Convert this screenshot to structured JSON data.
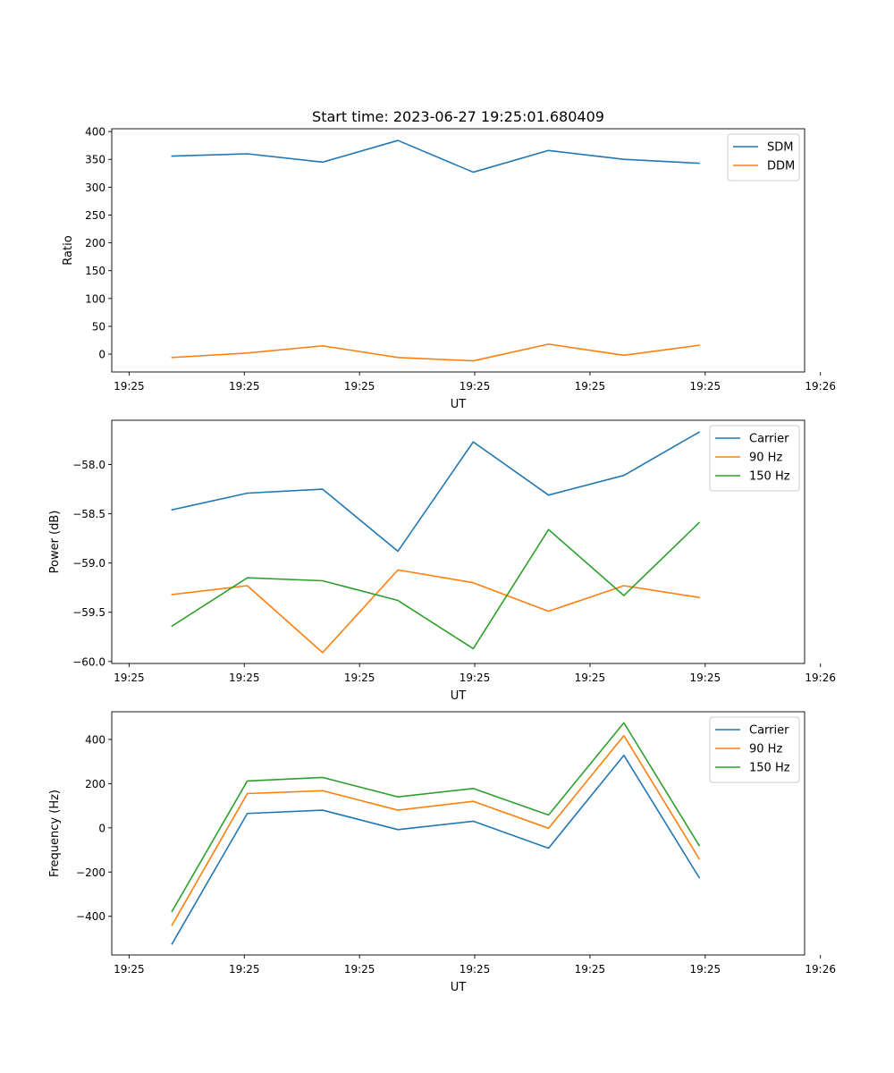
{
  "figure": {
    "title": "Start time: 2023-06-27 19:25:01.680409"
  },
  "colors": {
    "blue": "#1f77b4",
    "orange": "#ff7f0e",
    "green": "#2ca02c",
    "axis": "#000000",
    "legend_border": "#cccccc"
  },
  "chart_data": [
    {
      "type": "line",
      "title": "Start time: 2023-06-27 19:25:01.680409",
      "xlabel": "UT",
      "ylabel": "Ratio",
      "x": [
        1,
        2,
        3,
        4,
        5,
        6,
        7,
        8
      ],
      "xlim": [
        0.2,
        9.4
      ],
      "x_ticks": [
        0.43,
        1.96,
        3.49,
        5.02,
        6.55,
        8.08,
        9.61
      ],
      "x_tick_labels": [
        "19:25",
        "19:25",
        "19:25",
        "19:25",
        "19:25",
        "19:25",
        "19:26"
      ],
      "ylim": [
        -32,
        405
      ],
      "y_ticks": [
        0,
        50,
        100,
        150,
        200,
        250,
        300,
        350,
        400
      ],
      "y_tick_labels": [
        "0",
        "50",
        "100",
        "150",
        "200",
        "250",
        "300",
        "350",
        "400"
      ],
      "legend_position": "top-right",
      "grid": false,
      "series": [
        {
          "name": "SDM",
          "color": "#1f77b4",
          "values": [
            356,
            360,
            345,
            384,
            327,
            366,
            350,
            343
          ]
        },
        {
          "name": "DDM",
          "color": "#ff7f0e",
          "values": [
            -6,
            2,
            15,
            -6,
            -12,
            18,
            -2,
            16
          ]
        }
      ]
    },
    {
      "type": "line",
      "title": "",
      "xlabel": "UT",
      "ylabel": "Power (dB)",
      "x": [
        1,
        2,
        3,
        4,
        5,
        6,
        7,
        8
      ],
      "xlim": [
        0.2,
        9.4
      ],
      "x_ticks": [
        0.43,
        1.96,
        3.49,
        5.02,
        6.55,
        8.08,
        9.61
      ],
      "x_tick_labels": [
        "19:25",
        "19:25",
        "19:25",
        "19:25",
        "19:25",
        "19:25",
        "19:26"
      ],
      "ylim": [
        -60.02,
        -57.55
      ],
      "y_ticks": [
        -60.0,
        -59.5,
        -59.0,
        -58.5,
        -58.0
      ],
      "y_tick_labels": [
        "−60.0",
        "−59.5",
        "−59.0",
        "−58.5",
        "−58.0"
      ],
      "legend_position": "top-right",
      "grid": false,
      "series": [
        {
          "name": "Carrier",
          "color": "#1f77b4",
          "values": [
            -58.46,
            -58.29,
            -58.25,
            -58.88,
            -57.77,
            -58.31,
            -58.11,
            -57.67
          ]
        },
        {
          "name": "90 Hz",
          "color": "#ff7f0e",
          "values": [
            -59.32,
            -59.23,
            -59.91,
            -59.07,
            -59.2,
            -59.49,
            -59.23,
            -59.35
          ]
        },
        {
          "name": "150 Hz",
          "color": "#2ca02c",
          "values": [
            -59.64,
            -59.15,
            -59.18,
            -59.38,
            -59.87,
            -58.66,
            -59.33,
            -58.59
          ]
        }
      ]
    },
    {
      "type": "line",
      "title": "",
      "xlabel": "UT",
      "ylabel": "Frequency (Hz)",
      "x": [
        1,
        2,
        3,
        4,
        5,
        6,
        7,
        8
      ],
      "xlim": [
        0.2,
        9.4
      ],
      "x_ticks": [
        0.43,
        1.96,
        3.49,
        5.02,
        6.55,
        8.08,
        9.61
      ],
      "x_tick_labels": [
        "19:25",
        "19:25",
        "19:25",
        "19:25",
        "19:25",
        "19:25",
        "19:26"
      ],
      "ylim": [
        -575,
        525
      ],
      "y_ticks": [
        -400,
        -200,
        0,
        200,
        400
      ],
      "y_tick_labels": [
        "−400",
        "−200",
        "0",
        "200",
        "400"
      ],
      "legend_position": "top-right",
      "grid": false,
      "series": [
        {
          "name": "Carrier",
          "color": "#1f77b4",
          "values": [
            -525,
            65,
            80,
            -8,
            30,
            -92,
            328,
            -225
          ]
        },
        {
          "name": "90 Hz",
          "color": "#ff7f0e",
          "values": [
            -440,
            155,
            168,
            80,
            120,
            -2,
            417,
            -140
          ]
        },
        {
          "name": "150 Hz",
          "color": "#2ca02c",
          "values": [
            -378,
            212,
            228,
            140,
            178,
            58,
            475,
            -80
          ]
        }
      ]
    }
  ]
}
